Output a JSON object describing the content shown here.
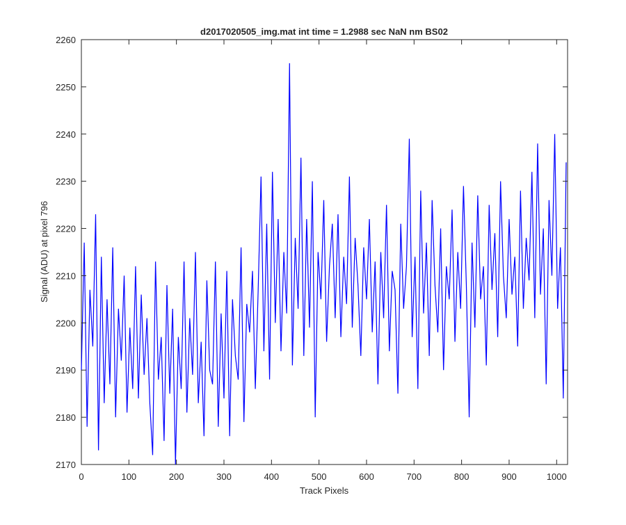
{
  "chart_data": {
    "type": "line",
    "title": "d2017020505_img.mat int time = 1.2988 sec  NaN nm BS02",
    "x_label": "Track Pixels",
    "y_label": "Signal (ADU) at pixel 796",
    "xlim": [
      0,
      1023
    ],
    "ylim": [
      2170,
      2260
    ],
    "xticks": [
      0,
      100,
      200,
      300,
      400,
      500,
      600,
      700,
      800,
      900,
      1000
    ],
    "yticks": [
      2170,
      2180,
      2190,
      2200,
      2210,
      2220,
      2230,
      2240,
      2250,
      2260
    ],
    "x": [
      0,
      6,
      12,
      18,
      24,
      30,
      36,
      42,
      48,
      54,
      60,
      66,
      72,
      78,
      84,
      90,
      96,
      102,
      108,
      114,
      120,
      126,
      132,
      138,
      144,
      150,
      156,
      162,
      168,
      174,
      180,
      186,
      192,
      198,
      204,
      210,
      216,
      222,
      228,
      234,
      240,
      246,
      252,
      258,
      264,
      270,
      276,
      282,
      288,
      294,
      300,
      306,
      312,
      318,
      324,
      330,
      336,
      342,
      348,
      354,
      360,
      366,
      372,
      378,
      384,
      390,
      396,
      402,
      408,
      414,
      420,
      426,
      432,
      438,
      444,
      450,
      456,
      462,
      468,
      474,
      480,
      486,
      492,
      498,
      504,
      510,
      516,
      522,
      528,
      534,
      540,
      546,
      552,
      558,
      564,
      570,
      576,
      582,
      588,
      594,
      600,
      606,
      612,
      618,
      624,
      630,
      636,
      642,
      648,
      654,
      660,
      666,
      672,
      678,
      684,
      690,
      696,
      702,
      708,
      714,
      720,
      726,
      732,
      738,
      744,
      750,
      756,
      762,
      768,
      774,
      780,
      786,
      792,
      798,
      804,
      810,
      816,
      822,
      828,
      834,
      840,
      846,
      852,
      858,
      864,
      870,
      876,
      882,
      888,
      894,
      900,
      906,
      912,
      918,
      924,
      930,
      936,
      942,
      948,
      954,
      960,
      966,
      972,
      978,
      984,
      990,
      996,
      1002,
      1008,
      1014,
      1020
    ],
    "series": [
      {
        "color": "#0000ff",
        "values": [
          2190,
          2217,
          2178,
          2207,
          2195,
          2223,
          2173,
          2214,
          2183,
          2205,
          2187,
          2216,
          2180,
          2203,
          2192,
          2210,
          2181,
          2199,
          2186,
          2212,
          2184,
          2206,
          2189,
          2201,
          2183,
          2172,
          2213,
          2188,
          2197,
          2175,
          2208,
          2185,
          2203,
          2170,
          2197,
          2186,
          2213,
          2181,
          2201,
          2189,
          2215,
          2183,
          2196,
          2176,
          2209,
          2190,
          2187,
          2213,
          2178,
          2202,
          2184,
          2211,
          2176,
          2205,
          2193,
          2188,
          2216,
          2179,
          2204,
          2198,
          2211,
          2186,
          2207,
          2231,
          2194,
          2221,
          2188,
          2232,
          2200,
          2222,
          2194,
          2215,
          2202,
          2255,
          2191,
          2218,
          2203,
          2235,
          2193,
          2222,
          2199,
          2230,
          2180,
          2215,
          2205,
          2226,
          2196,
          2212,
          2221,
          2201,
          2223,
          2197,
          2214,
          2204,
          2231,
          2199,
          2218,
          2208,
          2193,
          2216,
          2205,
          2222,
          2198,
          2213,
          2187,
          2215,
          2201,
          2225,
          2194,
          2211,
          2207,
          2185,
          2221,
          2203,
          2212,
          2239,
          2197,
          2214,
          2186,
          2228,
          2202,
          2217,
          2193,
          2226,
          2208,
          2198,
          2220,
          2190,
          2212,
          2205,
          2224,
          2196,
          2215,
          2203,
          2229,
          2208,
          2180,
          2217,
          2199,
          2227,
          2205,
          2212,
          2191,
          2225,
          2207,
          2219,
          2197,
          2230,
          2210,
          2201,
          2222,
          2206,
          2214,
          2195,
          2228,
          2203,
          2218,
          2209,
          2232,
          2201,
          2238,
          2206,
          2220,
          2187,
          2226,
          2210,
          2240,
          2203,
          2216,
          2184,
          2234
        ]
      }
    ]
  }
}
